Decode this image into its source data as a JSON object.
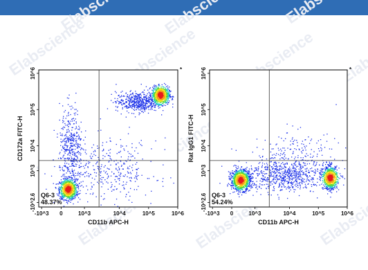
{
  "header": {
    "color": "#2f6db5"
  },
  "watermark": "Elabscience",
  "chart_data": [
    {
      "type": "scatter",
      "xlabel": "CD11b APC-H",
      "ylabel": "CD172a FITC-H",
      "xticks": [
        "-10^3",
        "0",
        "10^3",
        "10^4",
        "10^5",
        "10^6"
      ],
      "yticks": [
        "-10^2.6",
        "10^3",
        "10^4",
        "10^5",
        "10^6"
      ],
      "gate_label": "Q6-3",
      "gate_percent": "48.37%",
      "corner_mark": "*",
      "populations": [
        {
          "x": 0.35,
          "y": 0.1,
          "x_sd": 0.22,
          "y_sd": 0.22,
          "n": 1000
        },
        {
          "x": 5.1,
          "y": 4.25,
          "x_sd": 0.22,
          "y_sd": 0.18,
          "n": 900
        },
        {
          "x": 3.9,
          "y": 3.95,
          "x_sd": 0.55,
          "y_sd": 0.22,
          "n": 500
        },
        {
          "x": 0.5,
          "y": 1.9,
          "x_sd": 0.3,
          "y_sd": 0.9,
          "n": 450
        },
        {
          "x": 2.5,
          "y": 0.9,
          "x_sd": 1.2,
          "y_sd": 0.7,
          "n": 350
        }
      ],
      "peaks": [
        {
          "x": 0.35,
          "y": 0.1
        },
        {
          "x": 5.1,
          "y": 4.25
        }
      ]
    },
    {
      "type": "scatter",
      "xlabel": "CD11b APC-H",
      "ylabel": "Rat IgG1 FITC-H",
      "xticks": [
        "-10^3",
        "0",
        "10^3",
        "10^4",
        "10^5",
        "10^6"
      ],
      "yticks": [
        "-10^2.6",
        "10^3",
        "10^4",
        "10^5",
        "10^6"
      ],
      "gate_label": "Q6-3",
      "gate_percent": "54.24%",
      "corner_mark": "*",
      "populations": [
        {
          "x": 0.45,
          "y": 0.5,
          "x_sd": 0.25,
          "y_sd": 0.22,
          "n": 1100
        },
        {
          "x": 5.1,
          "y": 0.6,
          "x_sd": 0.18,
          "y_sd": 0.25,
          "n": 800
        },
        {
          "x": 2.8,
          "y": 0.7,
          "x_sd": 1.1,
          "y_sd": 0.35,
          "n": 700
        },
        {
          "x": 3.3,
          "y": 1.7,
          "x_sd": 1.1,
          "y_sd": 0.5,
          "n": 180
        }
      ],
      "peaks": [
        {
          "x": 0.45,
          "y": 0.5
        },
        {
          "x": 5.1,
          "y": 0.6
        }
      ]
    }
  ]
}
